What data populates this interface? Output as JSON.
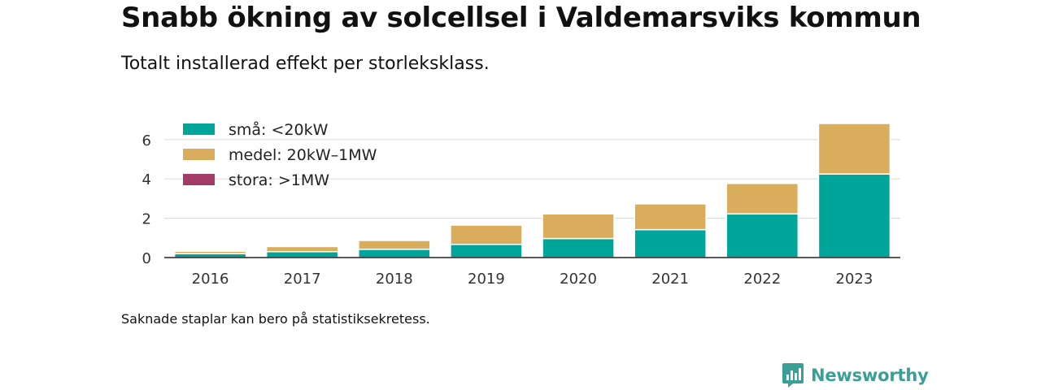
{
  "title": "Snabb ökning av solcellsel i Valdemarsviks kommun",
  "subtitle": "Totalt installerad effekt per storleksklass.",
  "footnote": "Saknade staplar kan bero på statistiksekretess.",
  "brand": {
    "name": "Newsworthy",
    "icon": "newsworthy-logo-icon",
    "color": "#3a9f96"
  },
  "chart_data": {
    "type": "bar",
    "stacked": true,
    "categories": [
      "2016",
      "2017",
      "2018",
      "2019",
      "2020",
      "2021",
      "2022",
      "2023"
    ],
    "series": [
      {
        "name": "små: <20kW",
        "color": "#00a59a",
        "values": [
          0.2,
          0.3,
          0.42,
          0.67,
          0.97,
          1.42,
          2.22,
          4.25
        ]
      },
      {
        "name": "medel: 20kW–1MW",
        "color": "#d9ad5b",
        "values": [
          0.12,
          0.26,
          0.45,
          0.98,
          1.25,
          1.31,
          1.55,
          2.57
        ]
      },
      {
        "name": "stora: >1MW",
        "color": "#a23b68",
        "values": [
          0,
          0,
          0,
          0,
          0,
          0,
          0,
          0
        ]
      }
    ],
    "yticks": [
      0,
      2,
      4,
      6
    ],
    "ylim": [
      0,
      7
    ],
    "xlabel": "",
    "ylabel": "",
    "grid": true,
    "legend": "top-left"
  }
}
